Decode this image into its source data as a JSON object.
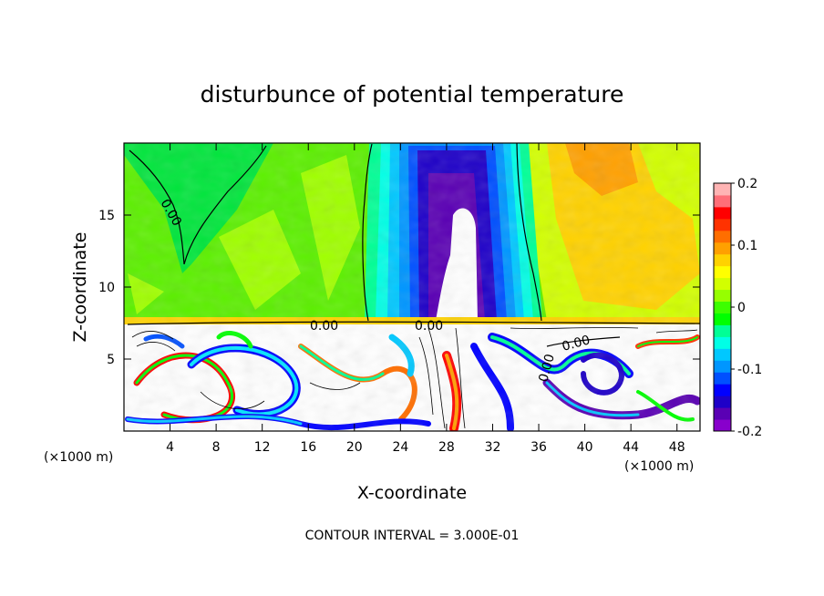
{
  "chart_data": {
    "type": "heatmap",
    "title": "disturbunce of potential temperature",
    "xlabel": "X-coordinate",
    "ylabel": "Z-coordinate",
    "x_unit": "(×1000 m)",
    "y_unit": "(×1000 m)",
    "xlim": [
      0,
      50
    ],
    "ylim": [
      0,
      20
    ],
    "x_ticks": [
      4,
      8,
      12,
      16,
      20,
      24,
      28,
      32,
      36,
      40,
      44,
      48
    ],
    "y_ticks": [
      5,
      10,
      15
    ],
    "colorbar": {
      "range": [
        -0.2,
        0.2
      ],
      "tick_values": [
        -0.2,
        -0.1,
        0,
        0.1,
        0.2
      ],
      "tick_labels": [
        "-0.2",
        "-0.1",
        "0",
        "0.1",
        "0.2"
      ],
      "colors": [
        "#8800cc",
        "#5a00b4",
        "#1e00c8",
        "#0000ff",
        "#0050ff",
        "#0096ff",
        "#00c8ff",
        "#00ffe6",
        "#00ff96",
        "#00ff00",
        "#3cff00",
        "#96ff00",
        "#d2ff00",
        "#ffff00",
        "#ffd200",
        "#ffa000",
        "#ff6e00",
        "#ff3200",
        "#ff0000",
        "#ff6e78",
        "#ffb4b4"
      ]
    },
    "contour_labels": [
      "0.00",
      "0.00",
      "0.00",
      "0.00",
      "0.00"
    ],
    "footer": "CONTOUR INTERVAL = 3.000E-01",
    "grid": false
  }
}
